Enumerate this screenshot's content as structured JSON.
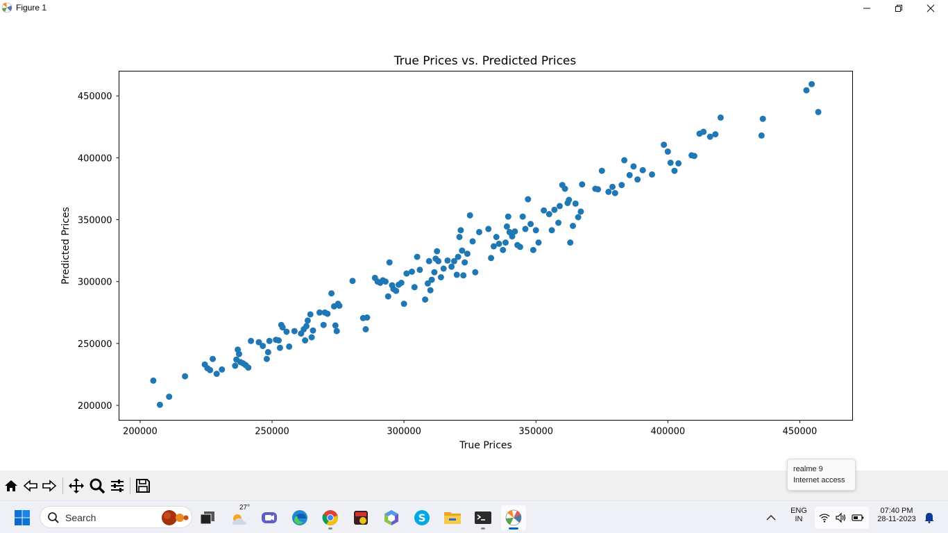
{
  "window": {
    "title": "Figure 1"
  },
  "chart_data": {
    "type": "scatter",
    "title": "True Prices vs. Predicted Prices",
    "xlabel": "True Prices",
    "ylabel": "Predicted Prices",
    "xlim": [
      192000,
      470000
    ],
    "ylim": [
      188000,
      470000
    ],
    "xticks": [
      200000,
      250000,
      300000,
      350000,
      400000,
      450000
    ],
    "yticks": [
      200000,
      250000,
      300000,
      350000,
      400000,
      450000
    ],
    "xtick_labels": [
      "200000",
      "250000",
      "300000",
      "350000",
      "400000",
      "450000"
    ],
    "ytick_labels": [
      "200000",
      "250000",
      "300000",
      "350000",
      "400000",
      "450000"
    ],
    "marker_color": "#1f77b4",
    "x": [
      205000,
      207500,
      211000,
      217000,
      224500,
      225500,
      226500,
      227500,
      229000,
      231000,
      236000,
      236500,
      237000,
      237500,
      238000,
      239000,
      240000,
      241000,
      242000,
      245000,
      246500,
      248000,
      248500,
      249000,
      251500,
      252500,
      253000,
      253500,
      254000,
      255500,
      256500,
      258500,
      261000,
      262000,
      262500,
      263000,
      263500,
      264500,
      265000,
      265500,
      268000,
      269500,
      270000,
      271000,
      272500,
      273500,
      274000,
      274500,
      275000,
      275500,
      280500,
      284500,
      285500,
      286000,
      289000,
      290000,
      291000,
      292000,
      293000,
      294000,
      294500,
      295500,
      296000,
      297000,
      298000,
      299000,
      300000,
      301000,
      303000,
      304000,
      305000,
      306000,
      308000,
      309000,
      309500,
      310000,
      310500,
      311500,
      312000,
      312500,
      313000,
      314000,
      315000,
      316500,
      318000,
      319000,
      320000,
      320500,
      321000,
      321500,
      322000,
      322500,
      323000,
      324000,
      325000,
      326000,
      327000,
      328500,
      332000,
      333000,
      334000,
      335000,
      336000,
      337500,
      338500,
      339000,
      339500,
      340000,
      341000,
      342000,
      343000,
      344000,
      345000,
      346000,
      347000,
      348000,
      349000,
      350000,
      351000,
      353000,
      355000,
      356000,
      357000,
      358500,
      359000,
      360000,
      361000,
      362000,
      362500,
      363000,
      364000,
      365000,
      366000,
      367000,
      367500,
      372500,
      373500,
      375000,
      377500,
      379000,
      380000,
      382500,
      383500,
      385500,
      387000,
      388500,
      390500,
      394000,
      398500,
      400000,
      401000,
      402500,
      404000,
      409000,
      410000,
      412000,
      413500,
      416000,
      418000,
      420000,
      435500,
      436000,
      452500,
      454500,
      457000
    ],
    "y": [
      220000,
      200500,
      207000,
      223500,
      233000,
      230000,
      228500,
      237500,
      225500,
      229000,
      232000,
      237000,
      245000,
      241500,
      235000,
      234000,
      232500,
      230500,
      252000,
      251000,
      248000,
      237500,
      243000,
      252000,
      253000,
      252500,
      246500,
      265000,
      263000,
      259500,
      247500,
      260000,
      258000,
      261500,
      252500,
      264000,
      268500,
      273500,
      255000,
      260500,
      275000,
      265000,
      275000,
      274000,
      290500,
      280000,
      264500,
      260000,
      282000,
      280500,
      300500,
      270500,
      261500,
      271000,
      303000,
      300000,
      299000,
      301000,
      300000,
      288000,
      315500,
      297000,
      294000,
      292500,
      297500,
      299000,
      282000,
      306500,
      308000,
      295500,
      320000,
      309500,
      285500,
      298500,
      316500,
      293000,
      301500,
      307500,
      318500,
      324500,
      316500,
      303500,
      310500,
      317000,
      312000,
      316500,
      305500,
      320000,
      336000,
      341500,
      325000,
      305000,
      315500,
      322500,
      353500,
      332500,
      307500,
      340000,
      342500,
      319000,
      328500,
      336000,
      330500,
      325500,
      331500,
      344500,
      352500,
      340000,
      336500,
      340500,
      329500,
      328000,
      352500,
      342500,
      366500,
      346500,
      325500,
      341500,
      331500,
      357500,
      354500,
      341500,
      358000,
      347500,
      361000,
      378000,
      375000,
      363500,
      366000,
      331500,
      345000,
      363000,
      352000,
      356500,
      378500,
      375000,
      374500,
      389500,
      372500,
      376500,
      371500,
      378000,
      398000,
      386000,
      393000,
      382500,
      390000,
      386500,
      410500,
      405000,
      396000,
      389500,
      395500,
      402000,
      401500,
      419500,
      421000,
      417000,
      419000,
      432500,
      418000,
      431500,
      454500,
      459500,
      437000
    ]
  },
  "toolbar": {
    "icons": [
      "home-icon",
      "back-icon",
      "forward-icon",
      "pan-icon",
      "zoom-icon",
      "configure-icon",
      "save-icon"
    ]
  },
  "tooltip": {
    "line1": "realme 9",
    "line2": "Internet access"
  },
  "taskbar": {
    "search_label": "Search",
    "weather_temp": "27°",
    "lang_line1": "ENG",
    "lang_line2": "IN",
    "time": "07:40 PM",
    "date": "28-11-2023",
    "icons": [
      "start-icon",
      "search-icon",
      "task-view-icon",
      "weather-icon",
      "teams-icon",
      "edge-icon",
      "chrome-icon",
      "msys-icon",
      "cube-app-icon",
      "skype-icon",
      "file-explorer-icon",
      "terminal-icon",
      "python-figure-icon",
      "chevron-up-icon",
      "wifi-icon",
      "speaker-icon",
      "battery-icon",
      "bell-icon"
    ]
  }
}
